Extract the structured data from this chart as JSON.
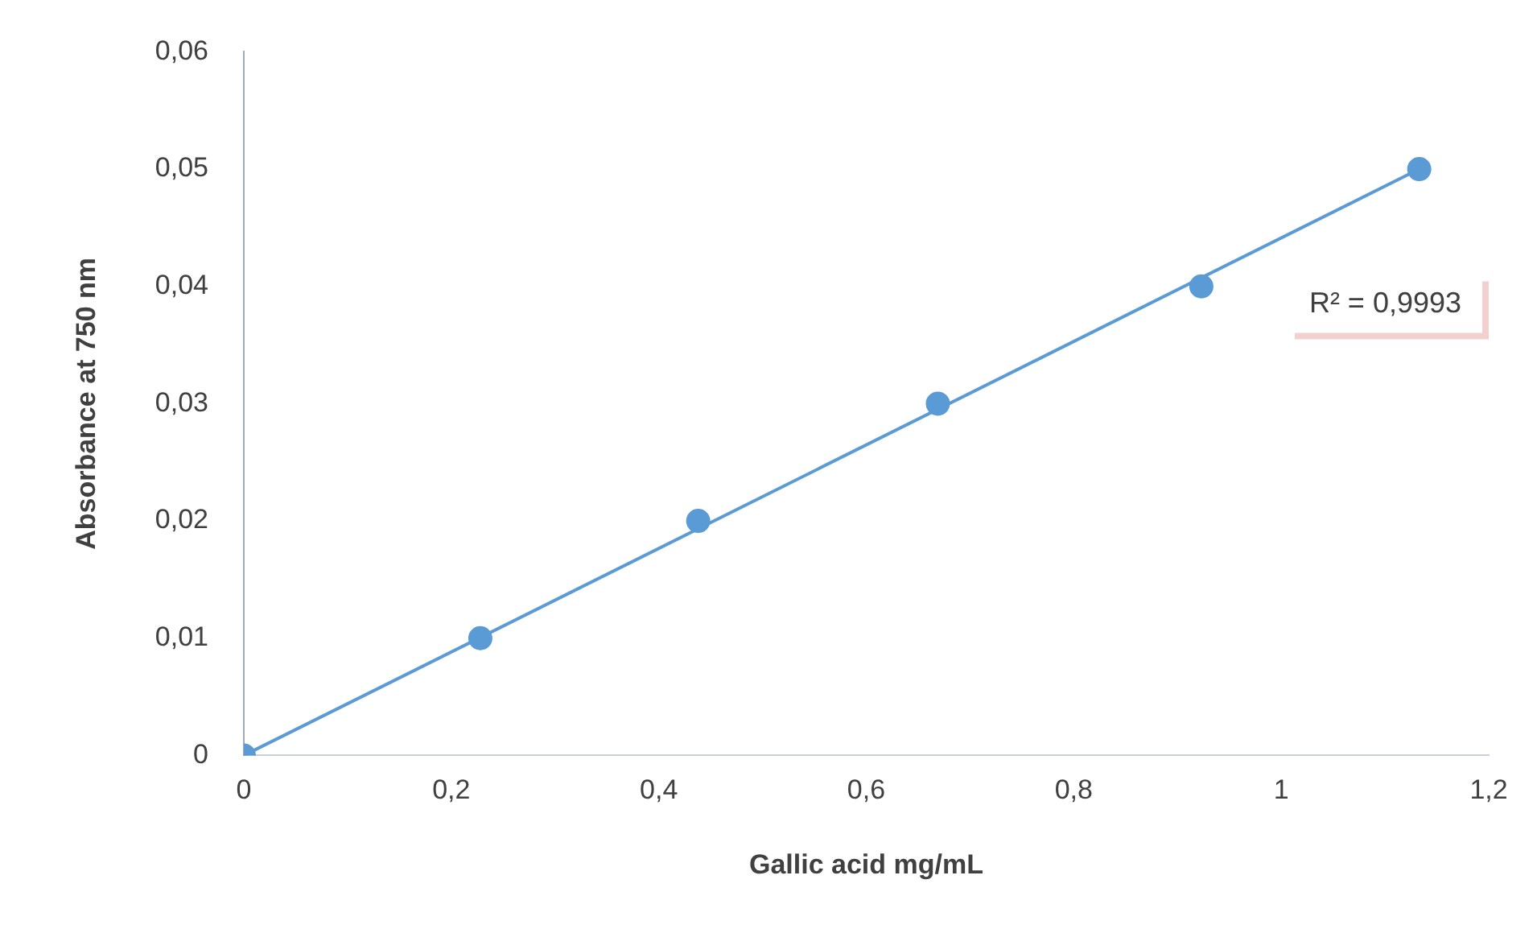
{
  "chart_data": {
    "type": "scatter",
    "xlabel": "Gallic acid mg/mL",
    "ylabel": "Absorbance at 750 nm",
    "series": [
      {
        "type": "scatter",
        "color": "#5b9bd5",
        "marker": "circle",
        "x": [
          0,
          0.228,
          0.438,
          0.669,
          0.923,
          1.133
        ],
        "values": [
          0,
          0.01,
          0.02,
          0.03,
          0.04,
          0.05
        ]
      },
      {
        "type": "line",
        "color": "#5b9bd5",
        "marker": "none",
        "x": [
          0,
          1.133
        ],
        "values": [
          0,
          0.05
        ]
      }
    ],
    "annotations": [
      "R² = 0,9993"
    ],
    "xlim": [
      0,
      1.2
    ],
    "xticks": [
      0,
      {
        "value": 0.2,
        "label": "0,2"
      },
      {
        "value": 0.4,
        "label": "0,4"
      },
      {
        "value": 0.6,
        "label": "0,6"
      },
      {
        "value": 0.8,
        "label": "0,8"
      },
      1,
      {
        "value": 1.2,
        "label": "1,2"
      }
    ],
    "ylim": [
      0,
      0.06
    ],
    "yticks": [
      0,
      {
        "value": 0.01,
        "label": "0,01"
      },
      {
        "value": 0.02,
        "label": "0,02"
      },
      {
        "value": 0.03,
        "label": "0,03"
      },
      {
        "value": 0.04,
        "label": "0,04"
      },
      {
        "value": 0.05,
        "label": "0,05"
      },
      {
        "value": 0.06,
        "label": "0,06"
      }
    ],
    "grid": false,
    "legend": false
  }
}
